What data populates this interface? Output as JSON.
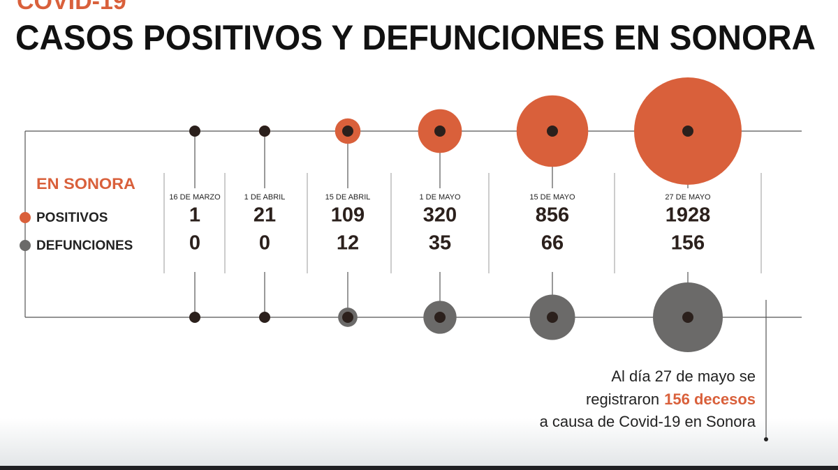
{
  "chart_data": {
    "type": "bubble",
    "kicker": "COVID-19",
    "title": "CASOS POSITIVOS Y DEFUNCIONES EN SONORA",
    "legend_title": "EN SONORA",
    "categories": [
      "16 DE MARZO",
      "1 DE ABRIL",
      "15 DE ABRIL",
      "1 DE MAYO",
      "15 DE MAYO",
      "27 DE MAYO"
    ],
    "series": [
      {
        "name": "POSITIVOS",
        "color": "#d9603b",
        "values": [
          1,
          21,
          109,
          320,
          856,
          1928
        ]
      },
      {
        "name": "DEFUNCIONES",
        "color": "#6b6a69",
        "values": [
          0,
          0,
          12,
          35,
          66,
          156
        ]
      }
    ],
    "annotation": {
      "lines": [
        "Al día 27 de mayo se",
        "registraron",
        "a causa de Covid-19 en Sonora"
      ],
      "highlight": "156 decesos"
    }
  }
}
